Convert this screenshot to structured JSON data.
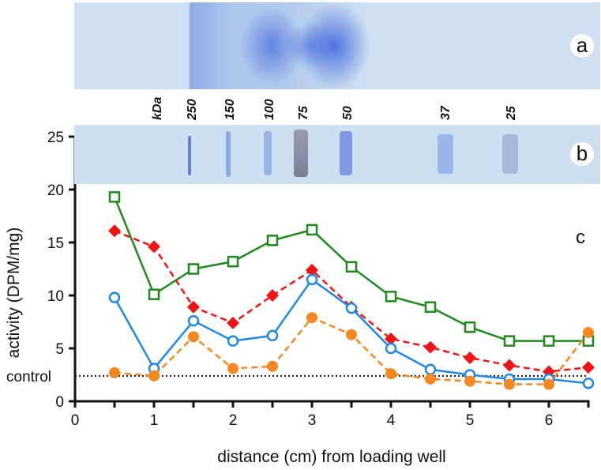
{
  "panels": {
    "a": "a",
    "b": "b",
    "c": "c"
  },
  "mw_markers": {
    "unit": "kDa",
    "labels": [
      "250",
      "150",
      "100",
      "75",
      "50",
      "37",
      "25"
    ]
  },
  "chart_data": {
    "type": "line",
    "xlabel": "distance (cm) from loading well",
    "ylabel": "activity (DPM/mg)",
    "xlim": [
      0,
      6.5
    ],
    "ylim": [
      0,
      25
    ],
    "xticks": [
      0,
      1,
      2,
      3,
      4,
      5,
      6
    ],
    "yticks": [
      0,
      5,
      10,
      15,
      20,
      25
    ],
    "grid": false,
    "x": [
      0.5,
      1,
      1.5,
      2,
      2.5,
      3,
      3.5,
      4,
      4.5,
      5,
      5.5,
      6,
      6.5
    ],
    "series": [
      {
        "values": [
          19.3,
          10.1,
          12.5,
          13.2,
          15.2,
          16.2,
          12.7,
          9.9,
          8.9,
          7.0,
          5.7,
          5.7,
          5.7
        ],
        "color": "#1e8a1e",
        "marker": "open-square",
        "line": "solid"
      },
      {
        "values": [
          16.1,
          14.6,
          8.9,
          7.4,
          10.0,
          12.4,
          8.9,
          5.9,
          5.1,
          4.1,
          3.4,
          2.8,
          3.2
        ],
        "color": "#f01414",
        "marker": "filled-diamond",
        "line": "dashed"
      },
      {
        "values": [
          9.8,
          3.1,
          7.6,
          5.7,
          6.2,
          11.5,
          8.8,
          5.0,
          3.0,
          2.5,
          2.1,
          2.1,
          1.7
        ],
        "color": "#1e88e8",
        "marker": "open-circle",
        "line": "solid"
      },
      {
        "values": [
          2.7,
          2.4,
          6.1,
          3.1,
          3.3,
          7.9,
          6.3,
          2.6,
          2.1,
          1.9,
          1.6,
          1.6,
          6.5
        ],
        "color": "#f7871f",
        "marker": "filled-circle",
        "line": "dashed"
      }
    ],
    "reference_line": {
      "label": "control",
      "value": 2.4,
      "style": "dotted"
    }
  }
}
